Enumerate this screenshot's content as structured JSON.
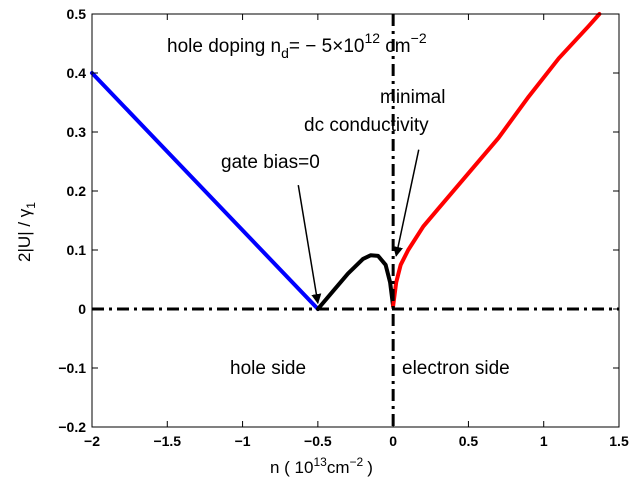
{
  "chart_data": {
    "type": "line",
    "title": "",
    "xlabel": {
      "main": "n  ( 10",
      "sup": "13",
      "unit": "cm",
      "unit_sup": "−2",
      "close": ")"
    },
    "ylabel": {
      "main": "2|U| / γ",
      "sub": "1"
    },
    "xlim": [
      -2,
      1.5
    ],
    "ylim": [
      -0.2,
      0.5
    ],
    "xticks": [
      "−2",
      "−1.5",
      "−1",
      "−0.5",
      "0",
      "0.5",
      "1",
      "1.5"
    ],
    "yticks": [
      "−0.2",
      "−0.1",
      "0",
      "0.1",
      "0.2",
      "0.3",
      "0.4",
      "0.5"
    ],
    "grid": false,
    "series": [
      {
        "color": "#0000ff",
        "x": [
          -2.0,
          -0.5
        ],
        "y": [
          0.4,
          0.0
        ]
      },
      {
        "color": "#000000",
        "x": [
          -0.5,
          -0.4,
          -0.3,
          -0.2,
          -0.15,
          -0.1,
          -0.05,
          -0.02,
          0.0
        ],
        "y": [
          0.0,
          0.03,
          0.06,
          0.085,
          0.091,
          0.09,
          0.075,
          0.045,
          0.005
        ]
      },
      {
        "color": "#ff0000",
        "x": [
          0.0,
          0.02,
          0.05,
          0.1,
          0.2,
          0.3,
          0.5,
          0.7,
          0.9,
          1.1,
          1.3,
          1.37
        ],
        "y": [
          0.005,
          0.045,
          0.075,
          0.1,
          0.14,
          0.17,
          0.23,
          0.29,
          0.36,
          0.425,
          0.48,
          0.5
        ]
      }
    ],
    "reference_lines": [
      {
        "orientation": "horizontal",
        "value": 0,
        "style": "dash-dot"
      },
      {
        "orientation": "vertical",
        "value": 0,
        "style": "dash-dot"
      }
    ],
    "annotations": {
      "doping": {
        "text": "hole doping n",
        "sub": "d",
        "rest": "= − 5×10",
        "sup": "12",
        "unit": " cm",
        "unit_sup": "−2"
      },
      "minimal_line1": "minimal",
      "minimal_line2": "dc conductivity",
      "gate_bias": "gate bias=0",
      "hole_side": "hole side",
      "electron_side": "electron side"
    },
    "arrows": [
      {
        "from": [
          -0.63,
          0.21
        ],
        "to": [
          -0.5,
          0.01
        ]
      },
      {
        "from": [
          0.17,
          0.27
        ],
        "to": [
          0.02,
          0.09
        ]
      }
    ]
  }
}
